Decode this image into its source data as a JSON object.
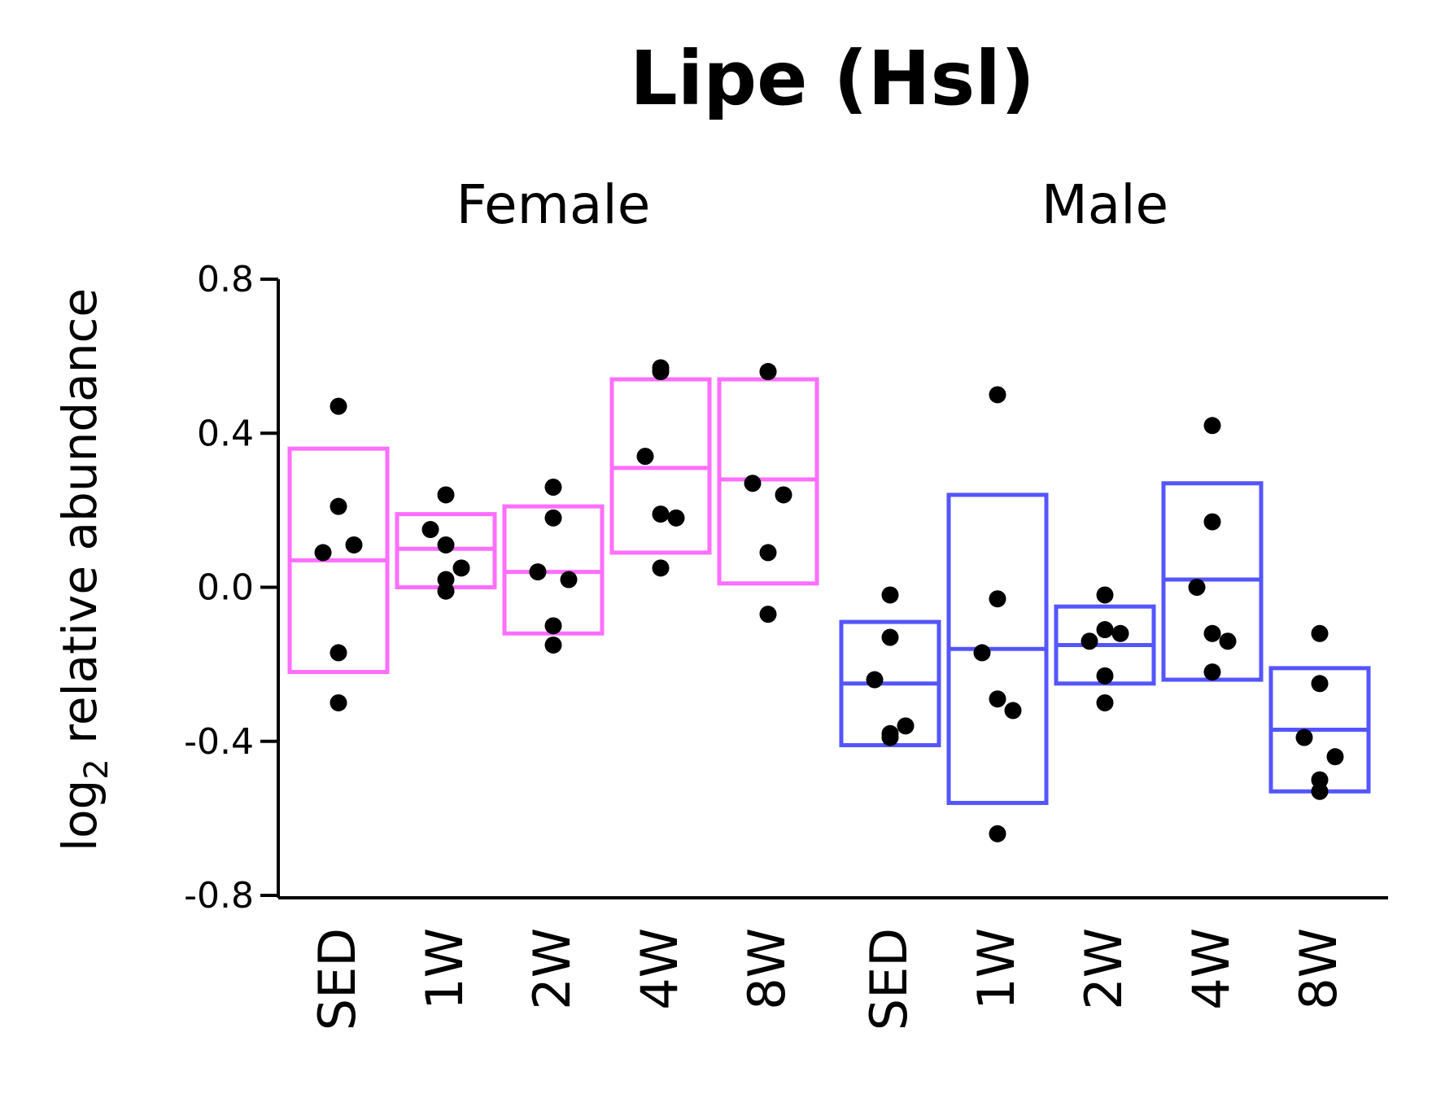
{
  "chart_data": {
    "type": "crossbar-dotplot",
    "title": "Lipe (Hsl)",
    "ylabel_main": "log",
    "ylabel_sub": "2",
    "ylabel_rest": " relative abundance",
    "ylim": [
      -0.8,
      0.8
    ],
    "yticks": [
      "0.8",
      "0.4",
      "0.0",
      "-0.4",
      "-0.8"
    ],
    "ytick_values": [
      0.8,
      0.4,
      0.0,
      -0.4,
      -0.8
    ],
    "facets": [
      {
        "name": "Female",
        "color": "#FF6EFF",
        "groups": [
          {
            "label": "SED",
            "low": -0.22,
            "mid": 0.07,
            "high": 0.36,
            "points": [
              0.47,
              0.21,
              0.09,
              0.11,
              -0.17,
              -0.3
            ]
          },
          {
            "label": "1W",
            "low": 0.0,
            "mid": 0.1,
            "high": 0.19,
            "points": [
              0.24,
              0.11,
              0.15,
              0.05,
              0.02,
              -0.01
            ]
          },
          {
            "label": "2W",
            "low": -0.12,
            "mid": 0.04,
            "high": 0.21,
            "points": [
              0.26,
              0.18,
              0.04,
              0.02,
              -0.1,
              -0.15
            ]
          },
          {
            "label": "4W",
            "low": 0.09,
            "mid": 0.31,
            "high": 0.54,
            "points": [
              0.56,
              0.57,
              0.34,
              0.18,
              0.19,
              0.05
            ]
          },
          {
            "label": "8W",
            "low": 0.01,
            "mid": 0.28,
            "high": 0.54,
            "points": [
              0.56,
              0.56,
              0.27,
              0.24,
              0.09,
              -0.07
            ]
          }
        ]
      },
      {
        "name": "Male",
        "color": "#5555FF",
        "groups": [
          {
            "label": "SED",
            "low": -0.41,
            "mid": -0.25,
            "high": -0.09,
            "points": [
              -0.02,
              -0.13,
              -0.24,
              -0.36,
              -0.39,
              -0.38
            ]
          },
          {
            "label": "1W",
            "low": -0.56,
            "mid": -0.16,
            "high": 0.24,
            "points": [
              0.5,
              -0.03,
              -0.17,
              -0.32,
              -0.29,
              -0.64
            ]
          },
          {
            "label": "2W",
            "low": -0.25,
            "mid": -0.15,
            "high": -0.05,
            "points": [
              -0.02,
              -0.11,
              -0.14,
              -0.12,
              -0.23,
              -0.3
            ]
          },
          {
            "label": "4W",
            "low": -0.24,
            "mid": 0.02,
            "high": 0.27,
            "points": [
              0.42,
              0.17,
              0.0,
              -0.14,
              -0.12,
              -0.22
            ]
          },
          {
            "label": "8W",
            "low": -0.53,
            "mid": -0.37,
            "high": -0.21,
            "points": [
              -0.12,
              -0.25,
              -0.39,
              -0.44,
              -0.53,
              -0.5
            ]
          }
        ]
      }
    ]
  }
}
